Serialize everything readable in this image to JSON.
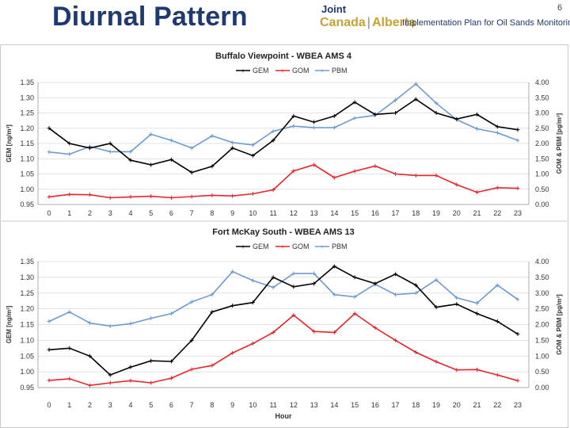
{
  "header": {
    "title": "Diurnal Pattern",
    "logo_line1": "Joint",
    "logo_line2_a": "Canada",
    "logo_line2_sep": "|",
    "logo_line2_b": "Alberta",
    "logo_line3": "Implementation Plan for Oil Sands Monitoring",
    "page_number": "6"
  },
  "colors": {
    "GEM": "#000000",
    "GOM": "#e8242b",
    "PBM": "#6c9bd2",
    "grid": "#d9d9d9"
  },
  "chart_data": [
    {
      "type": "line",
      "title": "Buffalo Viewpoint - WBEA AMS 4",
      "xlabel": "",
      "ylabel": "GEM [ng/m³]",
      "y2label": "GOM & PBM [pg/m³]",
      "x": [
        "0",
        "1",
        "2",
        "3",
        "4",
        "5",
        "6",
        "7",
        "8",
        "9",
        "10",
        "11",
        "12",
        "13",
        "14",
        "15",
        "16",
        "17",
        "18",
        "19",
        "20",
        "21",
        "22",
        "23"
      ],
      "ylim": [
        0.95,
        1.35
      ],
      "y_ticks": [
        "0.95",
        "1.00",
        "1.05",
        "1.10",
        "1.15",
        "1.20",
        "1.25",
        "1.30",
        "1.35"
      ],
      "y2lim": [
        0,
        4
      ],
      "y2_ticks": [
        "0.00",
        "0.50",
        "1.00",
        "1.50",
        "2.00",
        "2.50",
        "3.00",
        "3.50",
        "4.00"
      ],
      "legend": [
        "GEM",
        "GOM",
        "PBM"
      ],
      "series": [
        {
          "name": "GEM",
          "axis": "left",
          "values": [
            1.2,
            1.15,
            1.135,
            1.15,
            1.095,
            1.08,
            1.097,
            1.055,
            1.075,
            1.135,
            1.11,
            1.16,
            1.24,
            1.22,
            1.24,
            1.285,
            1.245,
            1.25,
            1.295,
            1.25,
            1.23,
            1.245,
            1.205,
            1.195
          ]
        },
        {
          "name": "GOM",
          "axis": "right",
          "values": [
            0.25,
            0.33,
            0.32,
            0.22,
            0.25,
            0.27,
            0.22,
            0.26,
            0.3,
            0.28,
            0.35,
            0.48,
            1.1,
            1.3,
            0.88,
            1.09,
            1.26,
            1.0,
            0.95,
            0.95,
            0.65,
            0.4,
            0.55,
            0.53
          ]
        },
        {
          "name": "PBM",
          "axis": "right",
          "values": [
            1.72,
            1.65,
            1.9,
            1.73,
            1.73,
            2.3,
            2.1,
            1.85,
            2.25,
            2.03,
            1.95,
            2.4,
            2.57,
            2.52,
            2.52,
            2.83,
            2.92,
            3.42,
            3.95,
            3.32,
            2.78,
            2.48,
            2.35,
            2.1
          ]
        }
      ]
    },
    {
      "type": "line",
      "title": "Fort McKay South - WBEA AMS 13",
      "xlabel": "Hour",
      "ylabel": "GEM [ng/m³]",
      "y2label": "GOM & PBM [pg/m³]",
      "x": [
        "0",
        "1",
        "2",
        "3",
        "4",
        "5",
        "6",
        "7",
        "8",
        "9",
        "10",
        "11",
        "12",
        "13",
        "14",
        "15",
        "16",
        "17",
        "18",
        "19",
        "20",
        "21",
        "22",
        "23"
      ],
      "ylim": [
        0.95,
        1.35
      ],
      "y_ticks": [
        "0.95",
        "1.00",
        "1.05",
        "1.10",
        "1.15",
        "1.20",
        "1.25",
        "1.30",
        "1.35"
      ],
      "y2lim": [
        0,
        4
      ],
      "y2_ticks": [
        "0.00",
        "0.50",
        "1.00",
        "1.50",
        "2.00",
        "2.50",
        "3.00",
        "3.50",
        "4.00"
      ],
      "legend": [
        "GEM",
        "GOM",
        "PBM"
      ],
      "series": [
        {
          "name": "GEM",
          "axis": "left",
          "values": [
            1.07,
            1.075,
            1.05,
            0.99,
            1.015,
            1.035,
            1.033,
            1.1,
            1.19,
            1.21,
            1.22,
            1.3,
            1.27,
            1.28,
            1.335,
            1.3,
            1.28,
            1.31,
            1.275,
            1.205,
            1.215,
            1.185,
            1.16,
            1.12
          ]
        },
        {
          "name": "GOM",
          "axis": "right",
          "values": [
            0.23,
            0.28,
            0.07,
            0.15,
            0.22,
            0.15,
            0.3,
            0.58,
            0.7,
            1.1,
            1.4,
            1.75,
            2.3,
            1.78,
            1.75,
            2.35,
            1.9,
            1.5,
            1.12,
            0.82,
            0.56,
            0.57,
            0.4,
            0.22
          ]
        },
        {
          "name": "PBM",
          "axis": "right",
          "values": [
            2.1,
            2.4,
            2.05,
            1.95,
            2.03,
            2.2,
            2.35,
            2.72,
            2.95,
            3.68,
            3.4,
            3.18,
            3.62,
            3.62,
            2.95,
            2.88,
            3.28,
            2.95,
            3.0,
            3.42,
            2.85,
            2.68,
            3.25,
            2.8
          ]
        }
      ]
    }
  ]
}
